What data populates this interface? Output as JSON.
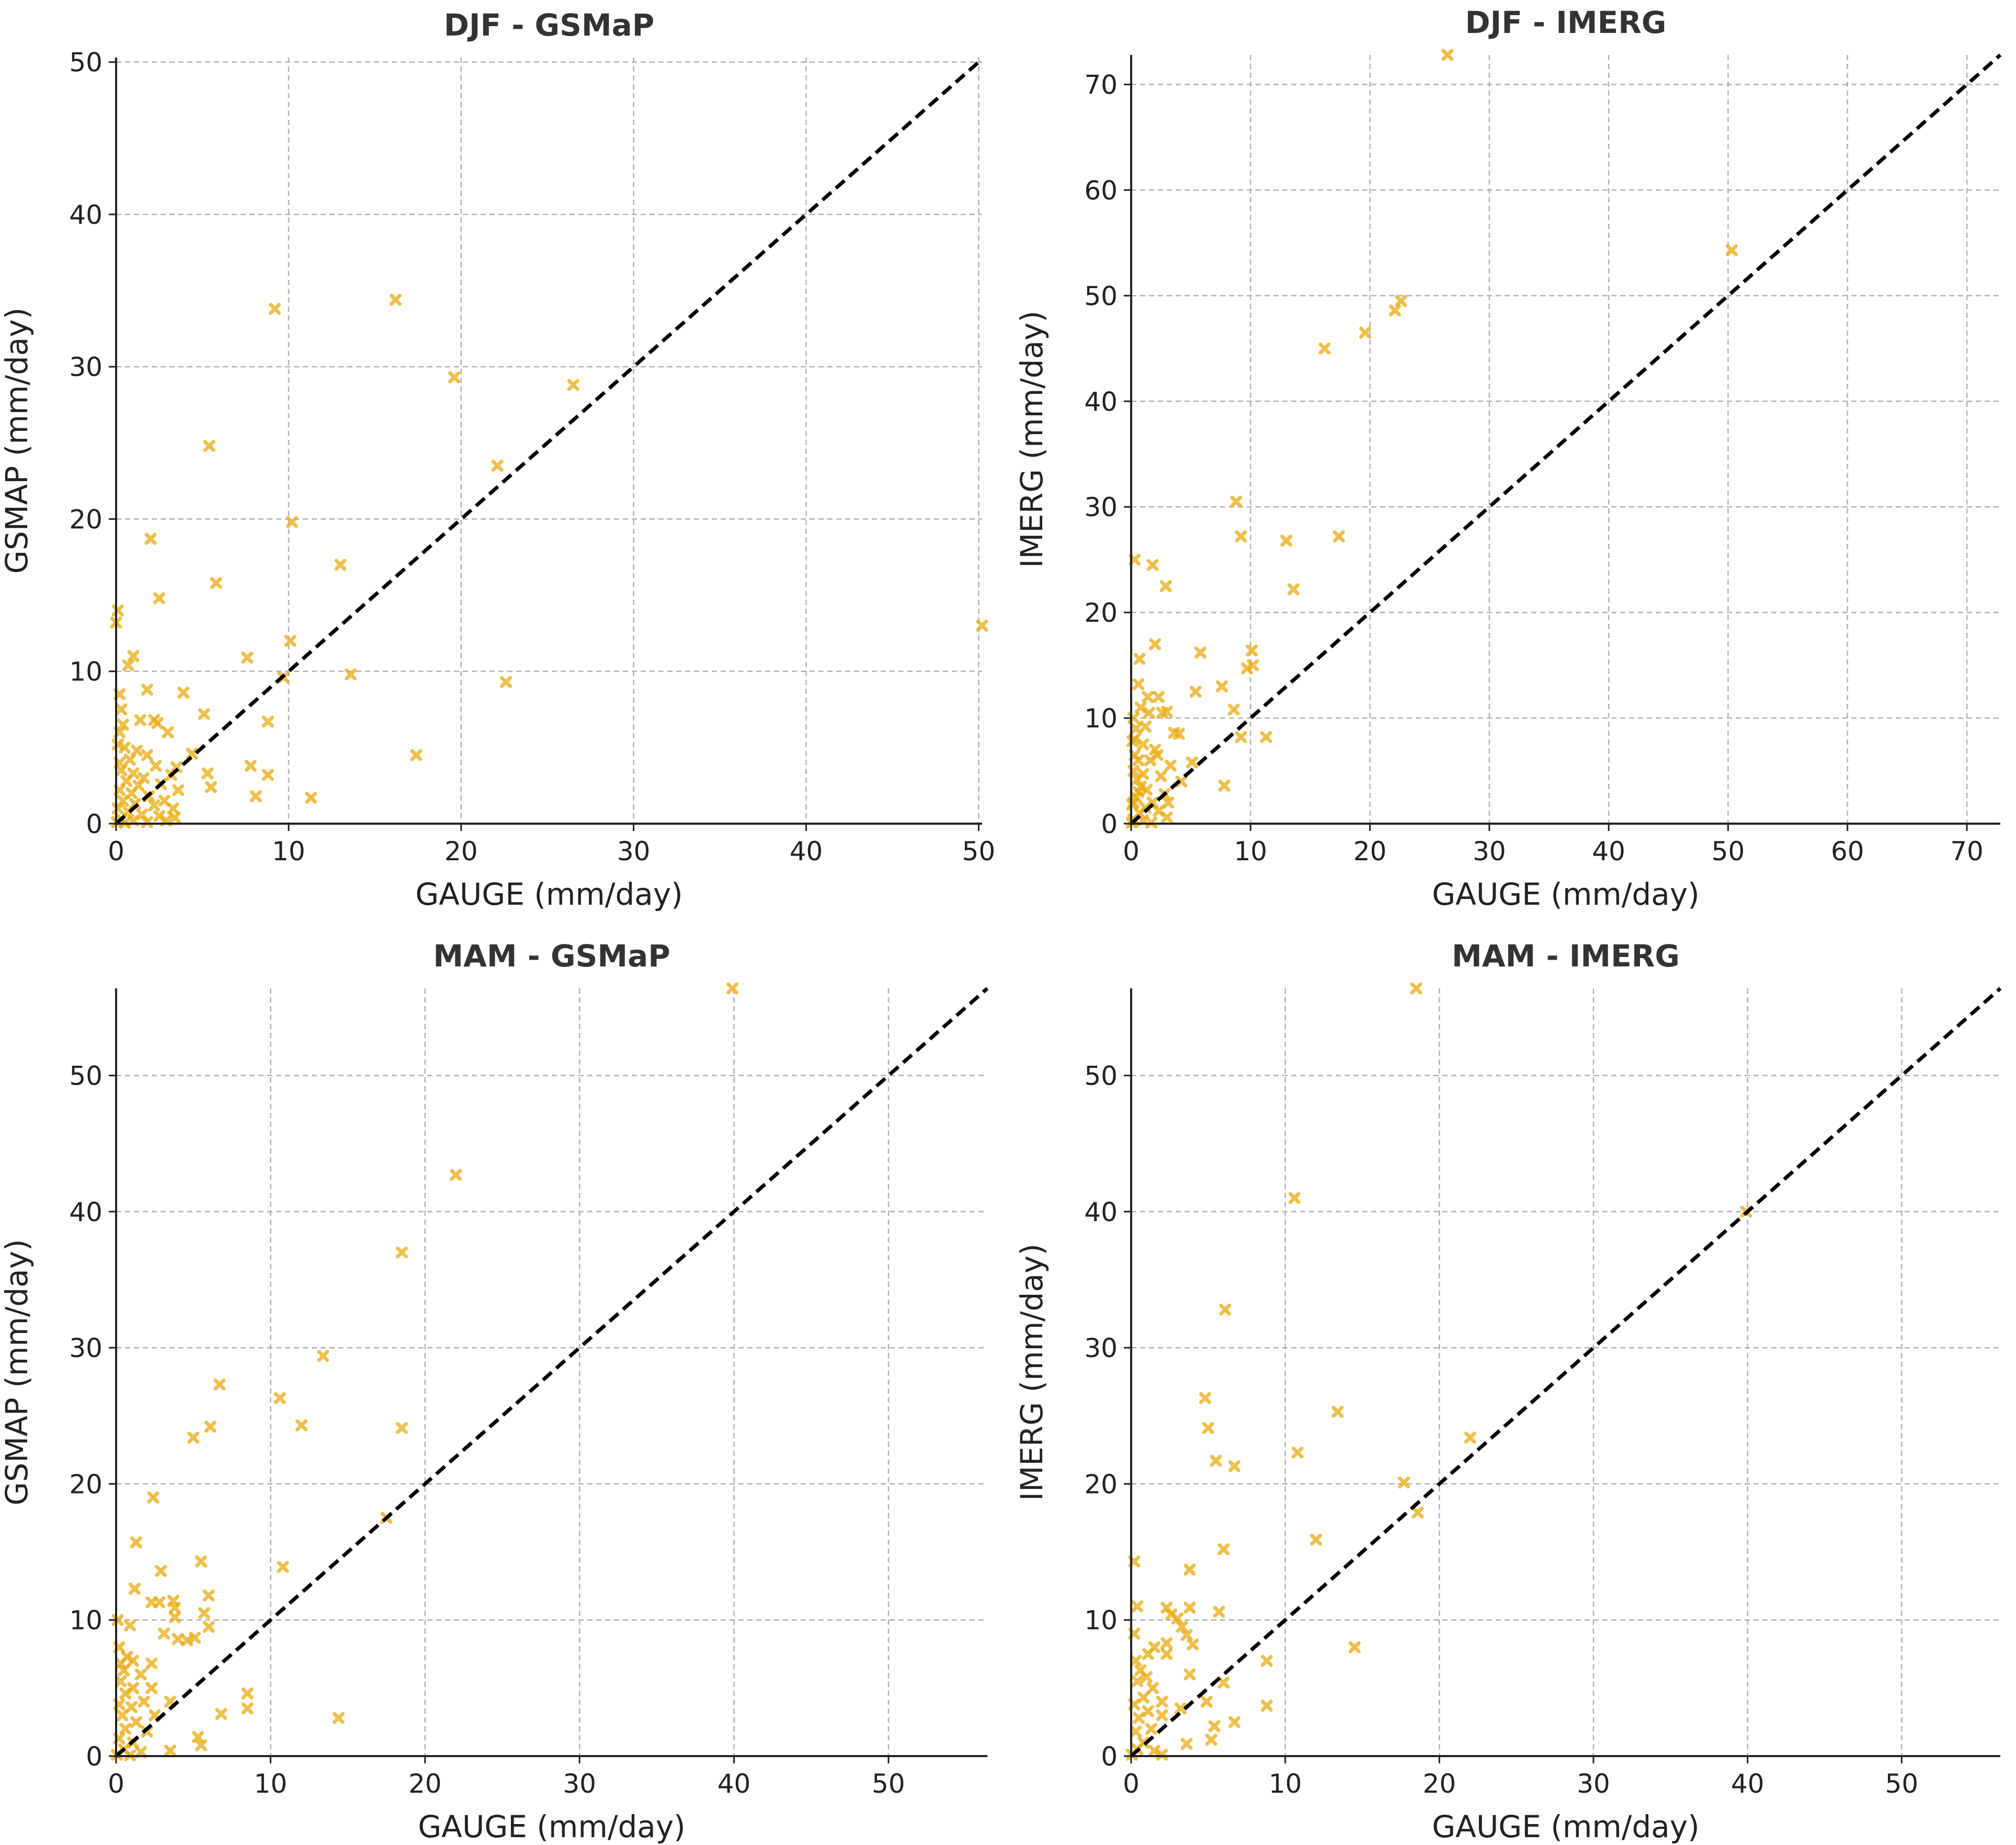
{
  "colors": {
    "marker": "#E8A90E",
    "refline": "#000000",
    "grid": "#b0b0b0",
    "axis": "#222222"
  },
  "chart_data": [
    {
      "id": "djf-gsmap",
      "type": "scatter",
      "title": "DJF - GSMaP",
      "xlabel": "GAUGE (mm/day)",
      "ylabel": "GSMAP (mm/day)",
      "xlim": [
        0,
        50.2
      ],
      "ylim": [
        0,
        50.3
      ],
      "xticks": [
        0,
        10,
        20,
        30,
        40,
        50
      ],
      "yticks": [
        0,
        10,
        20,
        30,
        40,
        50
      ],
      "tick_labels_x": [
        "0",
        "10",
        "20",
        "30",
        "40",
        "50"
      ],
      "tick_labels_y": [
        "0",
        "10",
        "20",
        "30",
        "40",
        "50"
      ],
      "reference_line": "1:1",
      "marker": "x",
      "points": [
        [
          9.2,
          33.8
        ],
        [
          16.2,
          34.4
        ],
        [
          19.6,
          29.3
        ],
        [
          26.5,
          28.8
        ],
        [
          5.4,
          24.8
        ],
        [
          22.1,
          23.5
        ],
        [
          2.0,
          18.7
        ],
        [
          10.2,
          19.8
        ],
        [
          5.8,
          15.8
        ],
        [
          2.5,
          14.8
        ],
        [
          13.0,
          17.0
        ],
        [
          0.1,
          14.0
        ],
        [
          0.0,
          13.2
        ],
        [
          50.2,
          13.0
        ],
        [
          10.1,
          12.0
        ],
        [
          7.6,
          10.9
        ],
        [
          1.0,
          11.0
        ],
        [
          0.7,
          10.4
        ],
        [
          13.6,
          9.8
        ],
        [
          9.7,
          9.6
        ],
        [
          22.6,
          9.3
        ],
        [
          0.2,
          8.5
        ],
        [
          1.8,
          8.8
        ],
        [
          3.9,
          8.6
        ],
        [
          0.3,
          7.5
        ],
        [
          1.4,
          6.8
        ],
        [
          2.2,
          6.8
        ],
        [
          2.4,
          6.6
        ],
        [
          5.1,
          7.2
        ],
        [
          8.8,
          6.7
        ],
        [
          0.2,
          6.0
        ],
        [
          3.0,
          6.0
        ],
        [
          17.4,
          4.5
        ],
        [
          0.1,
          5.2
        ],
        [
          0.5,
          5.0
        ],
        [
          1.2,
          4.8
        ],
        [
          1.8,
          4.5
        ],
        [
          4.4,
          4.6
        ],
        [
          0.8,
          4.2
        ],
        [
          2.3,
          3.8
        ],
        [
          3.5,
          3.7
        ],
        [
          7.8,
          3.8
        ],
        [
          0.3,
          3.5
        ],
        [
          1.0,
          3.3
        ],
        [
          1.6,
          3.0
        ],
        [
          3.2,
          3.2
        ],
        [
          5.3,
          3.3
        ],
        [
          8.8,
          3.2
        ],
        [
          0.6,
          2.8
        ],
        [
          1.3,
          2.5
        ],
        [
          2.6,
          2.6
        ],
        [
          3.6,
          2.2
        ],
        [
          5.5,
          2.4
        ],
        [
          0.2,
          2.2
        ],
        [
          0.9,
          2.0
        ],
        [
          1.9,
          1.8
        ],
        [
          2.8,
          1.5
        ],
        [
          8.1,
          1.8
        ],
        [
          11.3,
          1.7
        ],
        [
          0.4,
          1.5
        ],
        [
          1.1,
          1.3
        ],
        [
          2.2,
          1.2
        ],
        [
          3.3,
          1.0
        ],
        [
          0.1,
          1.0
        ],
        [
          0.7,
          0.8
        ],
        [
          1.5,
          0.6
        ],
        [
          2.5,
          0.5
        ],
        [
          3.4,
          0.4
        ],
        [
          0.3,
          0.3
        ],
        [
          1.0,
          0.2
        ],
        [
          0.05,
          0.1
        ],
        [
          0.5,
          0.05
        ],
        [
          1.8,
          0.1
        ],
        [
          2.9,
          0.2
        ],
        [
          0.2,
          4.0
        ],
        [
          0.4,
          6.5
        ]
      ]
    },
    {
      "id": "djf-imerg",
      "type": "scatter",
      "title": "DJF - IMERG",
      "xlabel": "GAUGE (mm/day)",
      "ylabel": "IMERG (mm/day)",
      "xlim": [
        0,
        72.8
      ],
      "ylim": [
        0,
        72.8
      ],
      "xticks": [
        0,
        10,
        20,
        30,
        40,
        50,
        60,
        70
      ],
      "yticks": [
        0,
        10,
        20,
        30,
        40,
        50,
        60,
        70
      ],
      "tick_labels_x": [
        "0",
        "10",
        "20",
        "30",
        "40",
        "50",
        "60",
        "70"
      ],
      "tick_labels_y": [
        "0",
        "10",
        "20",
        "30",
        "40",
        "50",
        "60",
        "70"
      ],
      "reference_line": "1:1",
      "marker": "x",
      "points": [
        [
          26.5,
          72.8
        ],
        [
          50.3,
          54.3
        ],
        [
          22.6,
          49.5
        ],
        [
          22.1,
          48.6
        ],
        [
          19.6,
          46.5
        ],
        [
          16.2,
          45.0
        ],
        [
          8.8,
          30.5
        ],
        [
          9.2,
          27.2
        ],
        [
          13.0,
          26.8
        ],
        [
          17.4,
          27.2
        ],
        [
          13.6,
          22.2
        ],
        [
          0.3,
          25.0
        ],
        [
          1.8,
          24.5
        ],
        [
          2.9,
          22.5
        ],
        [
          2.0,
          17.0
        ],
        [
          5.8,
          16.2
        ],
        [
          10.1,
          16.4
        ],
        [
          0.7,
          15.6
        ],
        [
          9.7,
          14.7
        ],
        [
          10.2,
          15.0
        ],
        [
          0.6,
          13.2
        ],
        [
          7.6,
          13.0
        ],
        [
          1.4,
          12.0
        ],
        [
          2.3,
          12.0
        ],
        [
          5.4,
          12.5
        ],
        [
          0.8,
          11.0
        ],
        [
          1.5,
          10.5
        ],
        [
          2.6,
          10.5
        ],
        [
          3.0,
          10.6
        ],
        [
          8.6,
          10.8
        ],
        [
          0.2,
          10.0
        ],
        [
          0.4,
          9.0
        ],
        [
          1.2,
          9.2
        ],
        [
          3.6,
          8.6
        ],
        [
          4.0,
          8.5
        ],
        [
          9.2,
          8.2
        ],
        [
          11.3,
          8.2
        ],
        [
          0.1,
          7.8
        ],
        [
          1.0,
          7.5
        ],
        [
          2.0,
          7.0
        ],
        [
          0.3,
          6.5
        ],
        [
          2.2,
          6.5
        ],
        [
          0.6,
          6.0
        ],
        [
          1.6,
          6.0
        ],
        [
          5.1,
          5.8
        ],
        [
          3.3,
          5.5
        ],
        [
          0.2,
          5.0
        ],
        [
          1.0,
          4.7
        ],
        [
          2.5,
          4.5
        ],
        [
          0.5,
          4.2
        ],
        [
          4.2,
          4.0
        ],
        [
          7.8,
          3.6
        ],
        [
          0.8,
          3.5
        ],
        [
          1.3,
          3.2
        ],
        [
          2.8,
          2.8
        ],
        [
          0.4,
          2.5
        ],
        [
          1.8,
          2.0
        ],
        [
          3.1,
          2.0
        ],
        [
          0.1,
          1.8
        ],
        [
          1.2,
          1.5
        ],
        [
          2.3,
          1.2
        ],
        [
          0.7,
          1.0
        ],
        [
          3.0,
          0.6
        ],
        [
          0.2,
          0.4
        ],
        [
          1.0,
          0.3
        ],
        [
          0.05,
          0.1
        ],
        [
          1.7,
          0.1
        ],
        [
          0.3,
          8.0
        ],
        [
          0.6,
          3.0
        ],
        [
          0.2,
          2.0
        ]
      ]
    },
    {
      "id": "mam-gsmap",
      "type": "scatter",
      "title": "MAM - GSMaP",
      "xlabel": "GAUGE (mm/day)",
      "ylabel": "GSMAP (mm/day)",
      "xlim": [
        0,
        56.4
      ],
      "ylim": [
        0,
        56.4
      ],
      "xticks": [
        0,
        10,
        20,
        30,
        40,
        50
      ],
      "yticks": [
        0,
        10,
        20,
        30,
        40,
        50
      ],
      "tick_labels_x": [
        "0",
        "10",
        "20",
        "30",
        "40",
        "50"
      ],
      "tick_labels_y": [
        "0",
        "10",
        "20",
        "30",
        "40",
        "50"
      ],
      "reference_line": "1:1",
      "marker": "x",
      "points": [
        [
          39.9,
          56.4
        ],
        [
          22.0,
          42.7
        ],
        [
          18.5,
          37.0
        ],
        [
          13.4,
          29.4
        ],
        [
          6.7,
          27.3
        ],
        [
          10.6,
          26.3
        ],
        [
          5.0,
          23.4
        ],
        [
          6.1,
          24.2
        ],
        [
          12.0,
          24.3
        ],
        [
          18.5,
          24.1
        ],
        [
          2.4,
          19.0
        ],
        [
          17.5,
          17.5
        ],
        [
          1.3,
          15.7
        ],
        [
          5.5,
          14.3
        ],
        [
          10.8,
          13.9
        ],
        [
          2.9,
          13.6
        ],
        [
          1.2,
          12.3
        ],
        [
          6.0,
          11.8
        ],
        [
          3.7,
          11.4
        ],
        [
          2.3,
          11.3
        ],
        [
          2.8,
          11.3
        ],
        [
          3.8,
          10.9
        ],
        [
          5.7,
          10.5
        ],
        [
          0.9,
          9.6
        ],
        [
          3.8,
          10.2
        ],
        [
          6.0,
          9.5
        ],
        [
          3.1,
          9.0
        ],
        [
          4.0,
          8.6
        ],
        [
          4.6,
          8.5
        ],
        [
          5.1,
          8.7
        ],
        [
          0.2,
          8.0
        ],
        [
          1.1,
          7.0
        ],
        [
          2.3,
          6.8
        ],
        [
          0.5,
          6.3
        ],
        [
          1.6,
          6.0
        ],
        [
          0.3,
          5.5
        ],
        [
          1.1,
          5.0
        ],
        [
          2.3,
          5.0
        ],
        [
          0.6,
          4.6
        ],
        [
          8.5,
          4.6
        ],
        [
          1.8,
          4.0
        ],
        [
          3.5,
          4.0
        ],
        [
          0.2,
          3.8
        ],
        [
          1.0,
          3.6
        ],
        [
          8.5,
          3.5
        ],
        [
          6.8,
          3.1
        ],
        [
          2.5,
          3.0
        ],
        [
          0.4,
          3.0
        ],
        [
          14.4,
          2.8
        ],
        [
          1.3,
          2.5
        ],
        [
          0.6,
          2.0
        ],
        [
          2.0,
          1.8
        ],
        [
          5.3,
          1.4
        ],
        [
          0.2,
          1.3
        ],
        [
          1.1,
          1.0
        ],
        [
          5.5,
          0.8
        ],
        [
          3.5,
          0.4
        ],
        [
          0.5,
          0.5
        ],
        [
          1.6,
          0.3
        ],
        [
          0.05,
          0.1
        ],
        [
          0.9,
          0.05
        ],
        [
          0.1,
          10.0
        ],
        [
          0.3,
          6.8
        ],
        [
          0.7,
          7.3
        ]
      ]
    },
    {
      "id": "mam-imerg",
      "type": "scatter",
      "title": "MAM - IMERG",
      "xlabel": "GAUGE (mm/day)",
      "ylabel": "IMERG (mm/day)",
      "xlim": [
        0,
        56.4
      ],
      "ylim": [
        0,
        56.4
      ],
      "xticks": [
        0,
        10,
        20,
        30,
        40,
        50
      ],
      "yticks": [
        0,
        10,
        20,
        30,
        40,
        50
      ],
      "tick_labels_x": [
        "0",
        "10",
        "20",
        "30",
        "40",
        "50"
      ],
      "tick_labels_y": [
        "0",
        "10",
        "20",
        "30",
        "40",
        "50"
      ],
      "reference_line": "1:1",
      "marker": "x",
      "points": [
        [
          18.5,
          56.4
        ],
        [
          10.6,
          41.0
        ],
        [
          39.9,
          40.0
        ],
        [
          6.1,
          32.8
        ],
        [
          4.8,
          26.3
        ],
        [
          13.4,
          25.3
        ],
        [
          5.0,
          24.1
        ],
        [
          22.0,
          23.4
        ],
        [
          10.8,
          22.3
        ],
        [
          5.5,
          21.7
        ],
        [
          6.7,
          21.3
        ],
        [
          17.7,
          20.1
        ],
        [
          18.6,
          17.9
        ],
        [
          12.0,
          15.9
        ],
        [
          6.0,
          15.2
        ],
        [
          0.2,
          14.3
        ],
        [
          3.8,
          13.7
        ],
        [
          0.4,
          11.0
        ],
        [
          2.3,
          10.9
        ],
        [
          3.8,
          10.9
        ],
        [
          5.7,
          10.6
        ],
        [
          2.6,
          10.4
        ],
        [
          3.0,
          10.1
        ],
        [
          3.3,
          9.5
        ],
        [
          0.2,
          9.0
        ],
        [
          3.6,
          8.9
        ],
        [
          4.0,
          8.2
        ],
        [
          2.3,
          8.3
        ],
        [
          1.5,
          8.0
        ],
        [
          14.5,
          8.0
        ],
        [
          1.1,
          7.5
        ],
        [
          2.3,
          7.5
        ],
        [
          8.8,
          7.0
        ],
        [
          0.3,
          7.0
        ],
        [
          0.6,
          6.3
        ],
        [
          1.0,
          5.8
        ],
        [
          3.8,
          6.0
        ],
        [
          6.0,
          5.4
        ],
        [
          0.4,
          5.5
        ],
        [
          1.4,
          5.0
        ],
        [
          0.8,
          4.3
        ],
        [
          2.0,
          4.0
        ],
        [
          4.9,
          4.0
        ],
        [
          8.8,
          3.7
        ],
        [
          0.2,
          3.8
        ],
        [
          1.1,
          3.3
        ],
        [
          3.2,
          3.5
        ],
        [
          0.5,
          2.8
        ],
        [
          2.0,
          3.0
        ],
        [
          6.7,
          2.5
        ],
        [
          5.4,
          2.2
        ],
        [
          1.3,
          2.0
        ],
        [
          0.3,
          1.8
        ],
        [
          0.8,
          1.0
        ],
        [
          5.2,
          1.2
        ],
        [
          3.6,
          0.9
        ],
        [
          0.4,
          0.5
        ],
        [
          1.5,
          0.4
        ],
        [
          0.05,
          0.1
        ],
        [
          2.0,
          0.1
        ]
      ]
    }
  ]
}
